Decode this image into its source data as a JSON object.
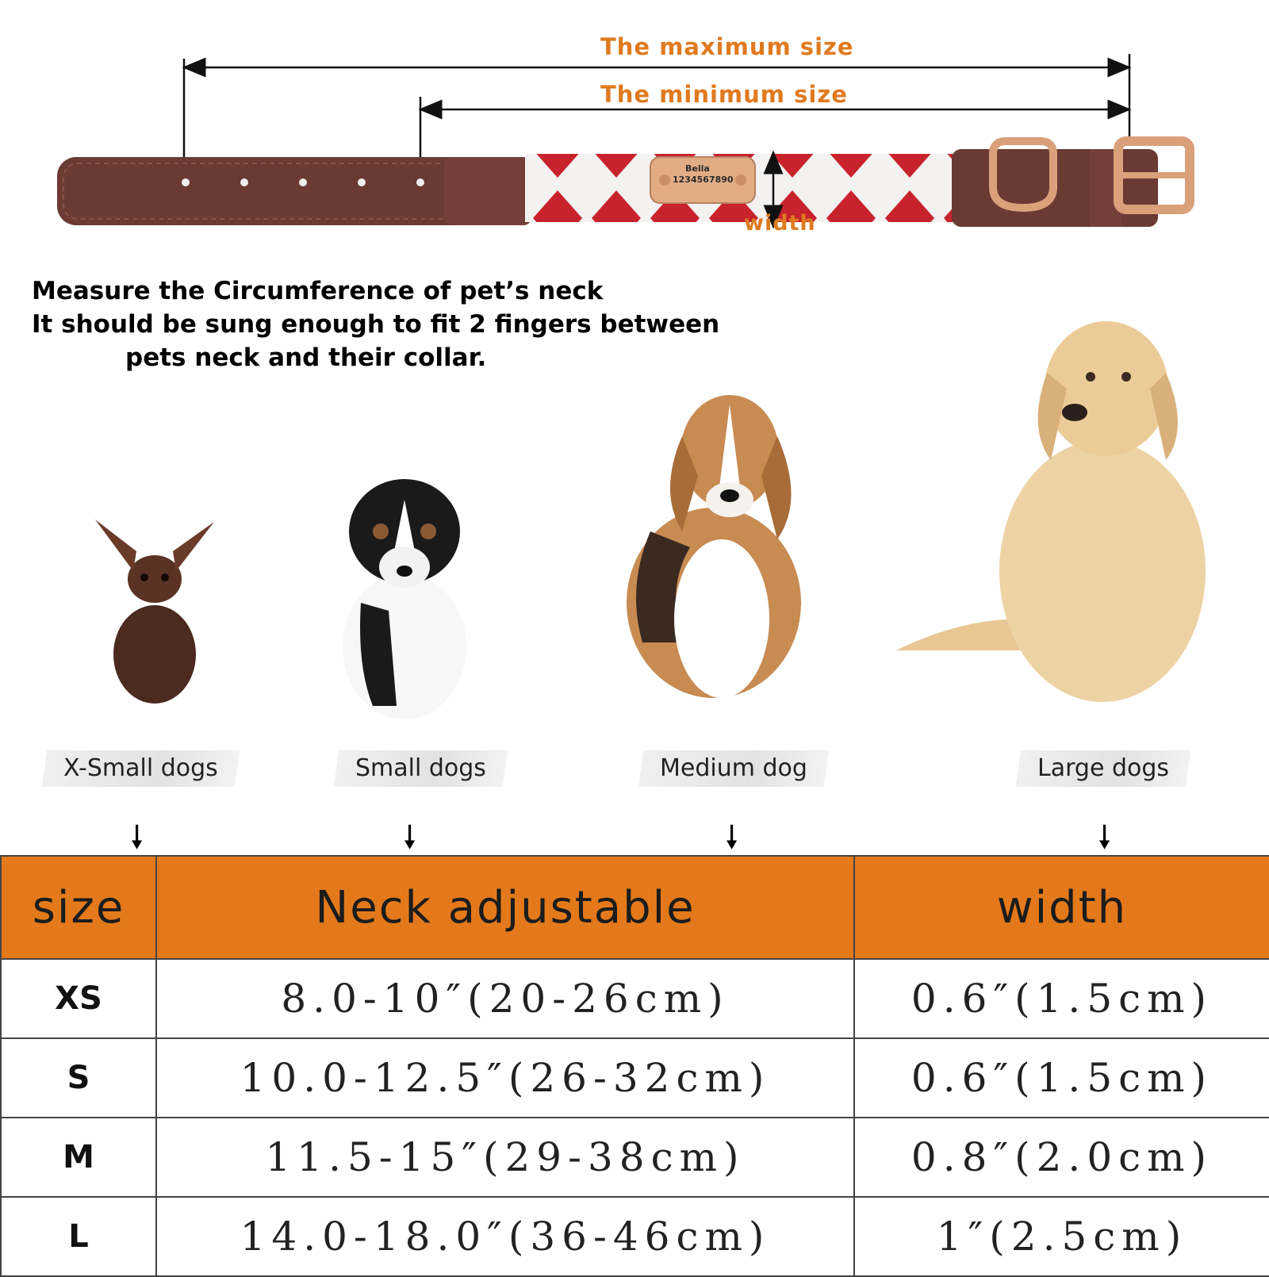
{
  "collar": {
    "max_label": "The maximum size",
    "min_label": "The minimum size",
    "width_label": "width",
    "tag_name": "Bella",
    "tag_number": "1234567890"
  },
  "instructions": {
    "line1": "Measure the Circumference of pet’s neck",
    "line2": "It should be sung enough to fit 2 fingers between",
    "line3": "pets neck and their collar."
  },
  "dogs": [
    {
      "label": "X-Small dogs"
    },
    {
      "label": "Small dogs"
    },
    {
      "label": "Medium dog"
    },
    {
      "label": "Large dogs"
    }
  ],
  "arrow_glyph": "🠗",
  "table": {
    "headers": [
      "size",
      "Neck adjustable",
      "width"
    ],
    "rows": [
      {
        "size": "XS",
        "neck": "8.0-10″(20-26cm)",
        "width": "0.6″(1.5cm)"
      },
      {
        "size": "S",
        "neck": "10.0-12.5″(26-32cm)",
        "width": "0.6″(1.5cm)"
      },
      {
        "size": "M",
        "neck": "11.5-15″(29-38cm)",
        "width": "0.8″(2.0cm)"
      },
      {
        "size": "L",
        "neck": "14.0-18.0″(36-46cm)",
        "width": "1″(2.5cm)"
      }
    ]
  },
  "colors": {
    "accent_orange": "#e3791b",
    "label_orange": "#e07a1f",
    "leather_brown": "#6b3a33",
    "pattern_red": "#c8232c",
    "hardware_rose_gold": "#d9a07a"
  }
}
